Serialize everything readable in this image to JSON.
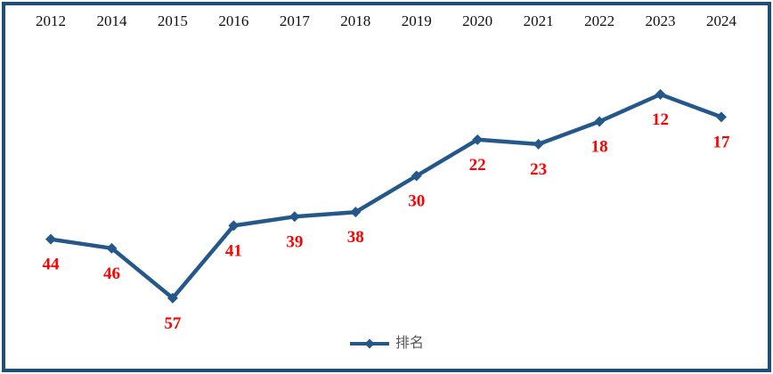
{
  "chart_data": {
    "type": "line",
    "title": "",
    "categories": [
      "2012",
      "2014",
      "2015",
      "2016",
      "2017",
      "2018",
      "2019",
      "2020",
      "2021",
      "2022",
      "2023",
      "2024"
    ],
    "series": [
      {
        "name": "排名",
        "values": [
          44,
          46,
          57,
          41,
          39,
          38,
          30,
          22,
          23,
          18,
          12,
          17
        ]
      }
    ],
    "legend_label": "排名",
    "legend_position": "bottom-center",
    "category_axis_position": "top",
    "value_axis": {
      "min": 0,
      "max": 60,
      "inverted": true,
      "visible": false
    },
    "grid": false,
    "marker": "diamond",
    "colors": {
      "line": "#25588A",
      "marker": "#25588A",
      "data_label": "#FF0000",
      "category_label": "#111111",
      "legend_text": "#595959",
      "frame_border": "#1F4E79",
      "background": "#FFFFFF"
    }
  }
}
